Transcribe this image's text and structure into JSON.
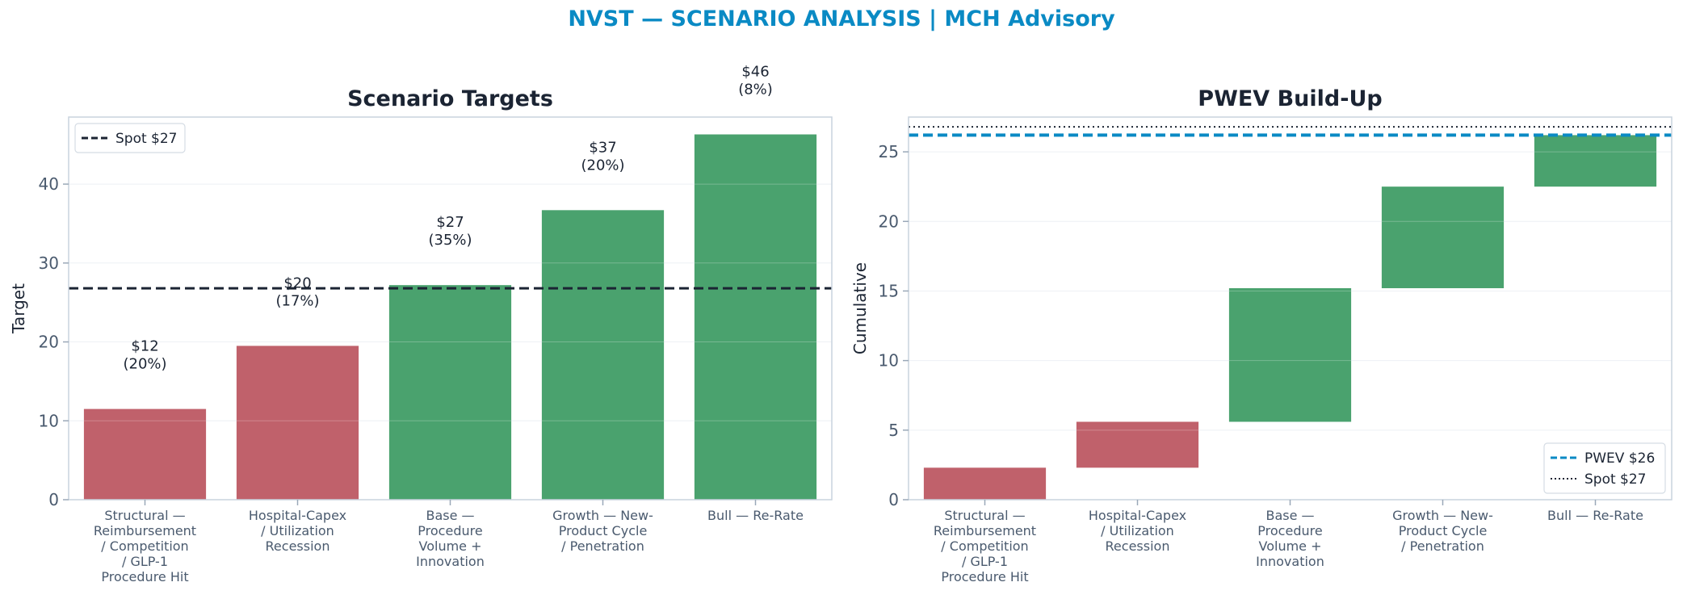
{
  "suptitle": "NVST — SCENARIO ANALYSIS | MCH Advisory",
  "colors": {
    "accent": "#0a8ac4",
    "bear": "#c0616b",
    "bull": "#4aa26e",
    "spot": "#1b2433",
    "title": "#1b2433",
    "tick": "#4a5a6e"
  },
  "chart_data": [
    {
      "type": "bar",
      "title": "Scenario Targets",
      "xlabel": "",
      "ylabel": "Target",
      "ylim": [
        0,
        48.5
      ],
      "yticks": [
        0,
        10,
        20,
        30,
        40
      ],
      "categories": [
        [
          "Structural —",
          "Reimbursement",
          "/ Competition",
          "/ GLP-1",
          "Procedure Hit"
        ],
        [
          "Hospital-Capex",
          "/ Utilization",
          "Recession"
        ],
        [
          "Base —",
          "Procedure",
          "Volume +",
          "Innovation"
        ],
        [
          "Growth — New-",
          "Product Cycle",
          "/ Penetration"
        ],
        [
          "Bull — Re-Rate"
        ]
      ],
      "values": [
        11.5,
        19.5,
        27.2,
        36.7,
        46.3
      ],
      "probabilities": [
        20,
        17,
        35,
        20,
        8
      ],
      "bar_labels": [
        [
          "$12",
          "(20%)"
        ],
        [
          "$20",
          "(17%)"
        ],
        [
          "$27",
          "(35%)"
        ],
        [
          "$37",
          "(20%)"
        ],
        [
          "$46",
          "(8%)"
        ]
      ],
      "bar_colors": [
        "bear",
        "bear",
        "bull",
        "bull",
        "bull"
      ],
      "reference_line": {
        "label": "Spot $27",
        "value": 26.8,
        "style": "dashed"
      },
      "legend": {
        "position": "top-left",
        "entries": [
          "Spot $27"
        ]
      },
      "grid": true
    },
    {
      "type": "bar",
      "subtype": "waterfall",
      "title": "PWEV Build-Up",
      "xlabel": "",
      "ylabel": "Cumulative",
      "ylim": [
        0,
        27.5
      ],
      "yticks": [
        0,
        5,
        10,
        15,
        20,
        25
      ],
      "categories": [
        [
          "Structural —",
          "Reimbursement",
          "/ Competition",
          "/ GLP-1",
          "Procedure Hit"
        ],
        [
          "Hospital-Capex",
          "/ Utilization",
          "Recession"
        ],
        [
          "Base —",
          "Procedure",
          "Volume +",
          "Innovation"
        ],
        [
          "Growth — New-",
          "Product Cycle",
          "/ Penetration"
        ],
        [
          "Bull — Re-Rate"
        ]
      ],
      "segments": [
        {
          "start": 0.0,
          "end": 2.3
        },
        {
          "start": 2.3,
          "end": 5.6
        },
        {
          "start": 5.6,
          "end": 15.2
        },
        {
          "start": 15.2,
          "end": 22.5
        },
        {
          "start": 22.5,
          "end": 26.2
        }
      ],
      "bar_colors": [
        "bear",
        "bear",
        "bull",
        "bull",
        "bull"
      ],
      "reference_lines": [
        {
          "label": "PWEV $26",
          "value": 26.2,
          "style": "dashed",
          "color": "accent"
        },
        {
          "label": "Spot $27",
          "value": 26.8,
          "style": "dotted",
          "color": "spot"
        }
      ],
      "legend": {
        "position": "bottom-right",
        "entries": [
          "PWEV $26",
          "Spot $27"
        ]
      },
      "grid": true
    }
  ]
}
